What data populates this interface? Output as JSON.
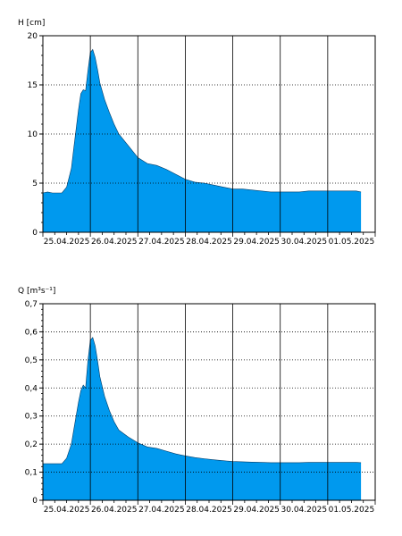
{
  "colors": {
    "fill": "#0099ee",
    "outline": "#003a66",
    "axis": "#000000",
    "grid": "#000000"
  },
  "chart_data": [
    {
      "type": "area",
      "ylabel": "H [cm]",
      "ylim": [
        0,
        20
      ],
      "yticks": [
        0,
        5,
        10,
        15,
        20
      ],
      "ytick_labels": [
        "0",
        "5",
        "10",
        "15",
        "20"
      ],
      "xlim": [
        0,
        7
      ],
      "xtick_labels": [
        "25.04.2025",
        "26.04.2025",
        "27.04.2025",
        "28.04.2025",
        "29.04.2025",
        "30.04.2025",
        "01.05.2025"
      ],
      "grid": true,
      "x": [
        0,
        0.1,
        0.2,
        0.3,
        0.4,
        0.5,
        0.6,
        0.65,
        0.7,
        0.75,
        0.8,
        0.85,
        0.9,
        0.95,
        1.0,
        1.05,
        1.1,
        1.15,
        1.2,
        1.3,
        1.4,
        1.5,
        1.6,
        1.8,
        2.0,
        2.2,
        2.4,
        2.6,
        2.8,
        3.0,
        3.2,
        3.4,
        3.6,
        3.8,
        4.0,
        4.2,
        4.4,
        4.6,
        4.8,
        5.0,
        5.2,
        5.4,
        5.6,
        5.8,
        6.0,
        6.2,
        6.4,
        6.6,
        6.7
      ],
      "y": [
        4.0,
        4.1,
        4.0,
        4.0,
        4.0,
        4.6,
        6.5,
        8.5,
        10.5,
        12.5,
        14.1,
        14.5,
        14.4,
        16.5,
        18.3,
        18.6,
        17.8,
        16.6,
        15.2,
        13.5,
        12.2,
        11.0,
        10.0,
        8.8,
        7.6,
        7.0,
        6.8,
        6.4,
        5.9,
        5.4,
        5.1,
        5.0,
        4.8,
        4.6,
        4.4,
        4.4,
        4.3,
        4.2,
        4.1,
        4.1,
        4.1,
        4.1,
        4.2,
        4.2,
        4.2,
        4.2,
        4.2,
        4.2,
        4.1
      ]
    },
    {
      "type": "area",
      "ylabel": "Q [m³s⁻¹]",
      "ylim": [
        0,
        0.7
      ],
      "yticks": [
        0,
        0.1,
        0.2,
        0.3,
        0.4,
        0.5,
        0.6,
        0.7
      ],
      "ytick_labels": [
        "0",
        "0,1",
        "0,2",
        "0,3",
        "0,4",
        "0,5",
        "0,6",
        "0,7"
      ],
      "xlim": [
        0,
        7
      ],
      "xtick_labels": [
        "25.04.2025",
        "26.04.2025",
        "27.04.2025",
        "28.04.2025",
        "29.04.2025",
        "30.04.2025",
        "01.05.2025"
      ],
      "grid": true,
      "x": [
        0,
        0.1,
        0.2,
        0.3,
        0.4,
        0.5,
        0.6,
        0.65,
        0.7,
        0.75,
        0.8,
        0.85,
        0.9,
        0.95,
        1.0,
        1.05,
        1.1,
        1.15,
        1.2,
        1.3,
        1.4,
        1.5,
        1.6,
        1.8,
        2.0,
        2.2,
        2.4,
        2.6,
        2.8,
        3.0,
        3.2,
        3.4,
        3.6,
        3.8,
        4.0,
        4.2,
        4.4,
        4.6,
        4.8,
        5.0,
        5.2,
        5.4,
        5.6,
        5.8,
        6.0,
        6.2,
        6.4,
        6.6,
        6.7
      ],
      "y": [
        0.13,
        0.13,
        0.13,
        0.13,
        0.13,
        0.15,
        0.2,
        0.25,
        0.3,
        0.35,
        0.39,
        0.41,
        0.4,
        0.5,
        0.57,
        0.58,
        0.55,
        0.5,
        0.44,
        0.37,
        0.32,
        0.28,
        0.25,
        0.225,
        0.205,
        0.19,
        0.185,
        0.175,
        0.165,
        0.158,
        0.152,
        0.148,
        0.144,
        0.141,
        0.138,
        0.137,
        0.136,
        0.135,
        0.134,
        0.134,
        0.134,
        0.134,
        0.135,
        0.135,
        0.135,
        0.135,
        0.135,
        0.135,
        0.134
      ]
    }
  ]
}
